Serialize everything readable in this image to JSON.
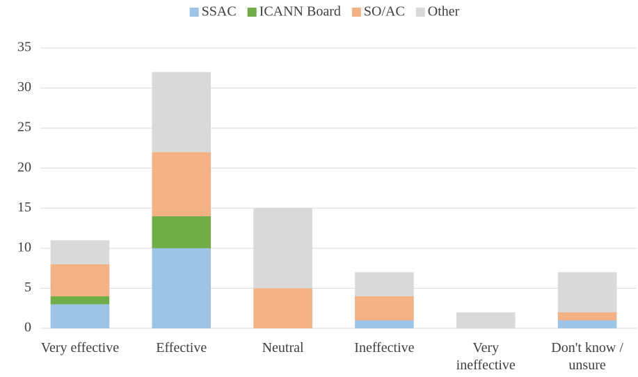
{
  "chart_data": {
    "type": "stacked_bar",
    "categories": [
      "Very effective",
      "Effective",
      "Neutral",
      "Ineffective",
      "Very\nineffective",
      "Don't know /\nunsure"
    ],
    "series": [
      {
        "name": "SSAC",
        "color": "#9dc3e6",
        "values": [
          3,
          10,
          0,
          1,
          0,
          1
        ]
      },
      {
        "name": "ICANN Board",
        "color": "#70ad47",
        "values": [
          1,
          4,
          0,
          0,
          0,
          0
        ]
      },
      {
        "name": "SO/AC",
        "color": "#f4b183",
        "values": [
          4,
          8,
          5,
          3,
          0,
          1
        ]
      },
      {
        "name": "Other",
        "color": "#d9d9d9",
        "values": [
          3,
          10,
          10,
          3,
          2,
          5
        ]
      }
    ],
    "ylim": [
      0,
      35
    ],
    "yticks": [
      0,
      5,
      10,
      15,
      20,
      25,
      30,
      35
    ],
    "grid": true,
    "legend": "top"
  }
}
